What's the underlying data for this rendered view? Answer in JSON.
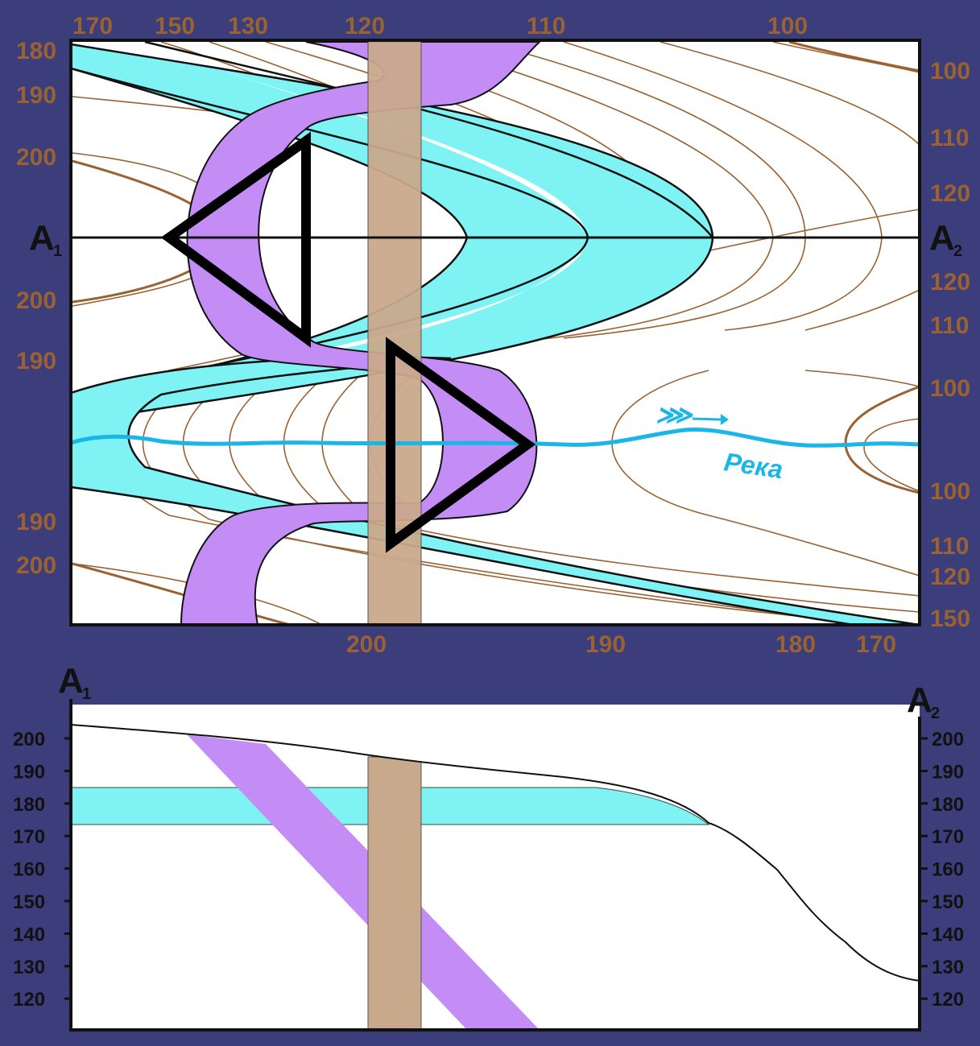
{
  "top_map": {
    "top_labels": [
      "170",
      "150",
      "130",
      "120",
      "110",
      "100"
    ],
    "left_labels": [
      "180",
      "190",
      "200",
      "200",
      "190",
      "190",
      "200"
    ],
    "right_labels": [
      "100",
      "110",
      "120",
      "120",
      "110",
      "100",
      "100",
      "110",
      "120",
      "150"
    ],
    "bottom_labels": [
      "200",
      "190",
      "180",
      "170"
    ],
    "section_start": "A",
    "section_start_sub": "1",
    "section_end": "A",
    "section_end_sub": "2",
    "river_label": "Река",
    "river_arrow": "⋙"
  },
  "profile": {
    "start": "A",
    "start_sub": "1",
    "end": "A",
    "end_sub": "2",
    "left_ticks": [
      "200",
      "190",
      "180",
      "170",
      "160",
      "150",
      "140",
      "130",
      "120"
    ],
    "right_ticks": [
      "200",
      "190",
      "180",
      "170",
      "160",
      "150",
      "140",
      "130",
      "120"
    ]
  },
  "colors": {
    "background": "#3b3e7a",
    "contour": "#9a6233",
    "water_layer": "#7ff3f3",
    "fault_layer": "#c48df5",
    "dyke": "#c9a98c",
    "river": "#19b6e6"
  }
}
